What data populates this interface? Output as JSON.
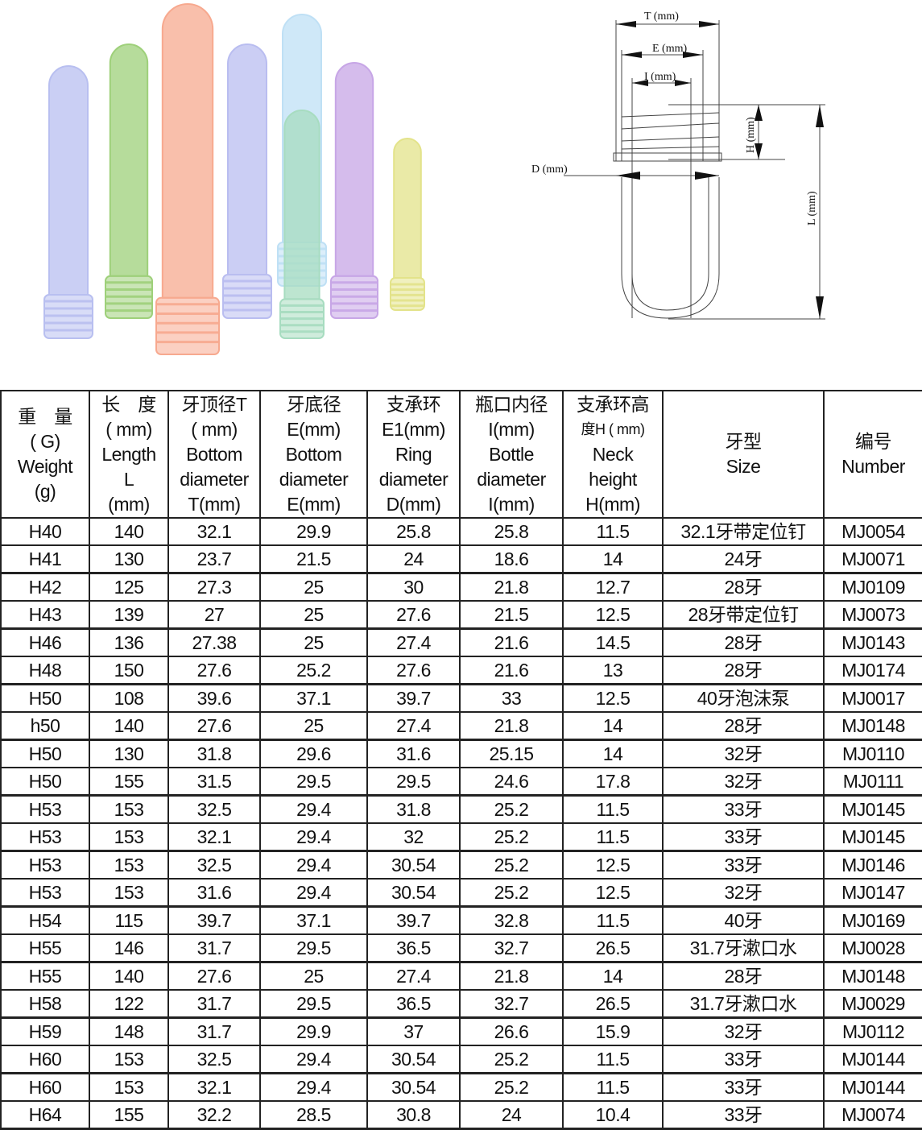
{
  "products_image": {
    "tubes": [
      {
        "color": "#b8bff0"
      },
      {
        "color": "#9ed07a"
      },
      {
        "color": "#f7a98f"
      },
      {
        "color": "#b9bdf0"
      },
      {
        "color": "#bfe0f5"
      },
      {
        "color": "#a7dcc0"
      },
      {
        "color": "#c7a6e6"
      },
      {
        "color": "#e3e38a"
      }
    ]
  },
  "diagram": {
    "labels": {
      "T": "T (mm)",
      "E": "E (mm)",
      "I": "I (mm)",
      "H": "H (mm)",
      "D": "D (mm)",
      "L": "L (mm)"
    }
  },
  "table": {
    "headers": [
      [
        "重　量",
        "( G)",
        "Weight",
        "(g)"
      ],
      [
        "长　度",
        "( mm)",
        "Length",
        "L",
        "(mm)"
      ],
      [
        "牙顶径T",
        "( mm)",
        "Bottom",
        "diameter",
        "T(mm)"
      ],
      [
        "牙底径",
        "E(mm)",
        "Bottom",
        "diameter",
        "E(mm)"
      ],
      [
        "支承环",
        "E1(mm)",
        "Ring",
        "diameter",
        "D(mm)"
      ],
      [
        "瓶口内径",
        "I(mm)",
        "Bottle",
        "diameter",
        "I(mm)"
      ],
      [
        "支承环高",
        "度H ( mm)",
        "Neck",
        "height",
        "H(mm)"
      ],
      [
        "牙型",
        "Size"
      ],
      [
        "编号",
        "Number"
      ]
    ],
    "rows": [
      [
        "H40",
        "140",
        "32.1",
        "29.9",
        "25.8",
        "25.8",
        "11.5",
        "32.1牙带定位钉",
        "MJ0054"
      ],
      [
        "H41",
        "130",
        "23.7",
        "21.5",
        "24",
        "18.6",
        "14",
        "24牙",
        "MJ0071"
      ],
      [
        "H42",
        "125",
        "27.3",
        "25",
        "30",
        "21.8",
        "12.7",
        "28牙",
        "MJ0109"
      ],
      [
        "H43",
        "139",
        "27",
        "25",
        "27.6",
        "21.5",
        "12.5",
        "28牙带定位钉",
        "MJ0073"
      ],
      [
        "H46",
        "136",
        "27.38",
        "25",
        "27.4",
        "21.6",
        "14.5",
        "28牙",
        "MJ0143"
      ],
      [
        "H48",
        "150",
        "27.6",
        "25.2",
        "27.6",
        "21.6",
        "13",
        "28牙",
        "MJ0174"
      ],
      [
        "H50",
        "108",
        "39.6",
        "37.1",
        "39.7",
        "33",
        "12.5",
        "40牙泡沫泵",
        "MJ0017"
      ],
      [
        "h50",
        "140",
        "27.6",
        "25",
        "27.4",
        "21.8",
        "14",
        "28牙",
        "MJ0148"
      ],
      [
        "H50",
        "130",
        "31.8",
        "29.6",
        "31.6",
        "25.15",
        "14",
        "32牙",
        "MJ0110"
      ],
      [
        "H50",
        "155",
        "31.5",
        "29.5",
        "29.5",
        "24.6",
        "17.8",
        "32牙",
        "MJ0111"
      ],
      [
        "H53",
        "153",
        "32.5",
        "29.4",
        "31.8",
        "25.2",
        "11.5",
        "33牙",
        "MJ0145"
      ],
      [
        "H53",
        "153",
        "32.1",
        "29.4",
        "32",
        "25.2",
        "11.5",
        "33牙",
        "MJ0145"
      ],
      [
        "H53",
        "153",
        "32.5",
        "29.4",
        "30.54",
        "25.2",
        "12.5",
        "33牙",
        "MJ0146"
      ],
      [
        "H53",
        "153",
        "31.6",
        "29.4",
        "30.54",
        "25.2",
        "12.5",
        "32牙",
        "MJ0147"
      ],
      [
        "H54",
        "115",
        "39.7",
        "37.1",
        "39.7",
        "32.8",
        "11.5",
        "40牙",
        "MJ0169"
      ],
      [
        "H55",
        "146",
        "31.7",
        "29.5",
        "36.5",
        "32.7",
        "26.5",
        "31.7牙漱口水",
        "MJ0028"
      ],
      [
        "H55",
        "140",
        "27.6",
        "25",
        "27.4",
        "21.8",
        "14",
        "28牙",
        "MJ0148"
      ],
      [
        "H58",
        "122",
        "31.7",
        "29.5",
        "36.5",
        "32.7",
        "26.5",
        "31.7牙漱口水",
        "MJ0029"
      ],
      [
        "H59",
        "148",
        "31.7",
        "29.9",
        "37",
        "26.6",
        "15.9",
        "32牙",
        "MJ0112"
      ],
      [
        "H60",
        "153",
        "32.5",
        "29.4",
        "30.54",
        "25.2",
        "11.5",
        "33牙",
        "MJ0144"
      ],
      [
        "H60",
        "153",
        "32.1",
        "29.4",
        "30.54",
        "25.2",
        "11.5",
        "33牙",
        "MJ0144"
      ],
      [
        "H64",
        "155",
        "32.2",
        "28.5",
        "30.8",
        "24",
        "10.4",
        "33牙",
        "MJ0074"
      ]
    ]
  }
}
